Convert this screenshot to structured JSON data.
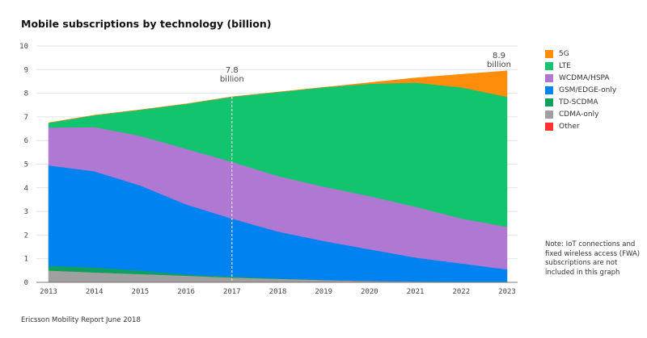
{
  "chart_data": {
    "type": "area",
    "stacked": true,
    "title": "Mobile subscriptions by technology (billion)",
    "x": [
      2013,
      2014,
      2015,
      2016,
      2017,
      2018,
      2019,
      2020,
      2021,
      2022,
      2023
    ],
    "ylim": [
      0,
      10
    ],
    "yticks": [
      0,
      1,
      2,
      3,
      4,
      5,
      6,
      7,
      8,
      9,
      10
    ],
    "grid": true,
    "legend_placement": "right",
    "series": [
      {
        "name": "Other",
        "color": "#ff3232",
        "values": [
          0.03,
          0.03,
          0.03,
          0.03,
          0.03,
          0.03,
          0.03,
          0.03,
          0.03,
          0.03,
          0.03
        ]
      },
      {
        "name": "CDMA-only",
        "color": "#a0a0a0",
        "values": [
          0.47,
          0.39,
          0.32,
          0.25,
          0.17,
          0.12,
          0.07,
          0.03,
          0.01,
          0,
          0
        ]
      },
      {
        "name": "TD-SCDMA",
        "color": "#0fa060",
        "values": [
          0.2,
          0.21,
          0.15,
          0.05,
          0.05,
          0.02,
          0,
          0,
          0,
          0,
          0
        ]
      },
      {
        "name": "GSM/EDGE-only",
        "color": "#0082f0",
        "values": [
          4.25,
          4.07,
          3.6,
          2.97,
          2.45,
          1.98,
          1.65,
          1.34,
          1.01,
          0.77,
          0.52
        ]
      },
      {
        "name": "WCDMA/HSPA",
        "color": "#af78d2",
        "values": [
          1.6,
          1.87,
          2.1,
          2.35,
          2.4,
          2.35,
          2.3,
          2.25,
          2.15,
          1.9,
          1.8
        ]
      },
      {
        "name": "LTE",
        "color": "#12c46e",
        "values": [
          0.2,
          0.5,
          1.1,
          1.9,
          2.75,
          3.55,
          4.2,
          4.75,
          5.25,
          5.55,
          5.5
        ]
      },
      {
        "name": "5G",
        "color": "#ff8c0a",
        "values": [
          0,
          0,
          0,
          0,
          0,
          0,
          0,
          0.05,
          0.2,
          0.55,
          1.1
        ]
      }
    ],
    "annotations": [
      {
        "x": 2017,
        "value": "7.8",
        "unit": "billion",
        "dashed_line": true
      },
      {
        "x": 2023,
        "value": "8.9",
        "unit": "billion"
      }
    ],
    "legend_order": [
      "5G",
      "LTE",
      "WCDMA/HSPA",
      "GSM/EDGE-only",
      "TD-SCDMA",
      "CDMA-only",
      "Other"
    ]
  },
  "note": "Note: IoT connections and fixed wireless access (FWA) subscriptions are not included in this graph",
  "footer": "Ericsson Mobility Report June 2018"
}
